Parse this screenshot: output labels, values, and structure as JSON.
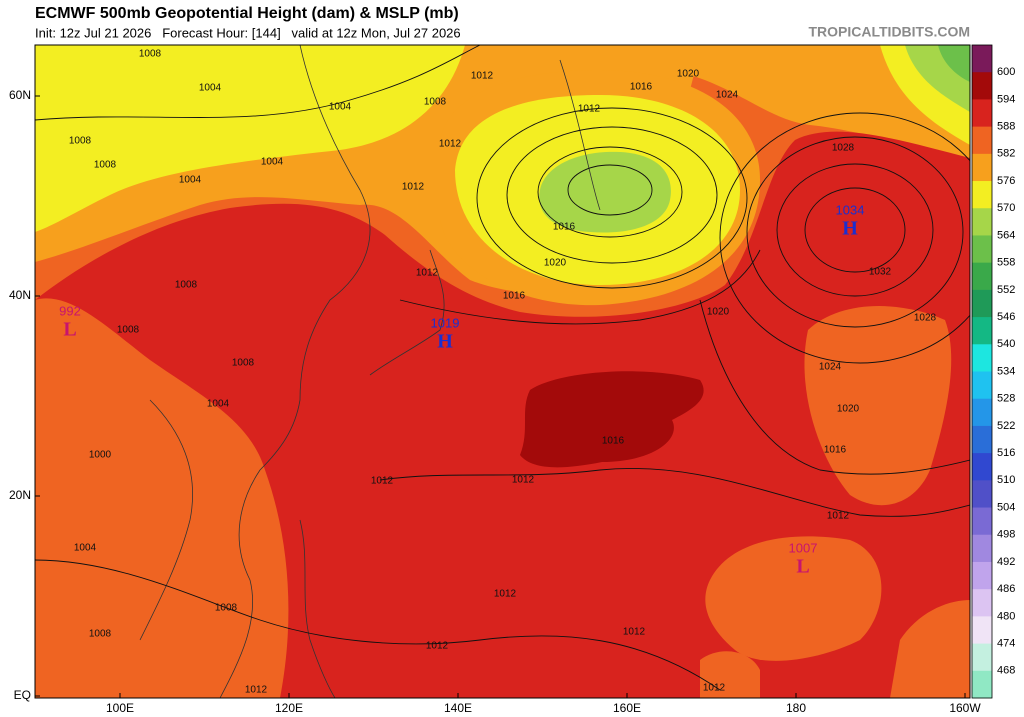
{
  "header": {
    "title": "ECMWF 500mb Geopotential Height (dam) & MSLP (mb)",
    "subtitle": "Init: 12z Jul 21 2026   Forecast Hour: [144]   valid at 12z Mon, Jul 27 2026",
    "watermark": "TROPICALTIDBITS.COM"
  },
  "map_axes": {
    "lat_labels": [
      "60N",
      "40N",
      "20N",
      "EQ"
    ],
    "lon_labels": [
      "100E",
      "120E",
      "140E",
      "160E",
      "180",
      "160W"
    ]
  },
  "colorbar": {
    "levels": [
      600,
      594,
      588,
      582,
      576,
      570,
      564,
      558,
      552,
      546,
      540,
      534,
      528,
      522,
      516,
      510,
      504,
      498,
      492,
      486,
      480,
      474,
      468
    ],
    "colors": [
      "#7a1a5a",
      "#a30a0a",
      "#d8231e",
      "#ef6422",
      "#f7a01d",
      "#f3ee22",
      "#a6d649",
      "#6cc04a",
      "#3aa94a",
      "#1f9a58",
      "#14b884",
      "#1de6e0",
      "#1fc2f0",
      "#2496e8",
      "#2a6ed8",
      "#3048d0",
      "#5050c8",
      "#7a6ad4",
      "#a088e0",
      "#c0a4ec",
      "#dcc4f2",
      "#f0e4f6",
      "#c4f0e0",
      "#90e8c4"
    ]
  },
  "pressure_centers": [
    {
      "value": 992,
      "type": "L"
    },
    {
      "value": 1019,
      "type": "H"
    },
    {
      "value": 1034,
      "type": "H"
    },
    {
      "value": 1007,
      "type": "L"
    }
  ],
  "contour_labels": [
    1008,
    1004,
    1004,
    1008,
    1012,
    1020,
    1016,
    1012,
    1024,
    1028,
    1008,
    1008,
    1004,
    1004,
    1012,
    1012,
    1016,
    1020,
    1012,
    1016,
    1020,
    1032,
    1028,
    1024,
    1020,
    1016,
    1016,
    1012,
    1012,
    1012,
    1004,
    1008,
    1008,
    1012,
    1012,
    1012,
    1012,
    1012,
    1008,
    1008,
    1008,
    1004,
    1000
  ]
}
